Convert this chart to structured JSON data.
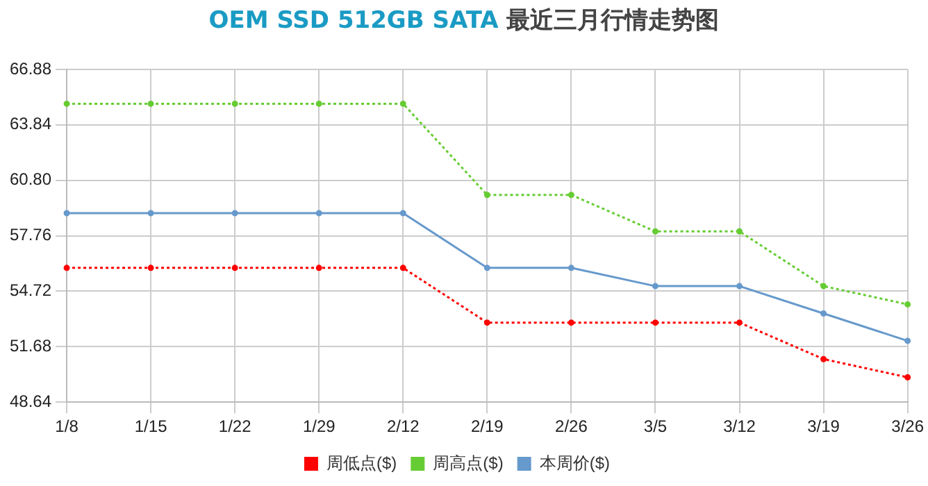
{
  "chart_data": {
    "type": "line",
    "title": "OEM SSD 512GB SATA 最近三月行情走势图",
    "categories": [
      "1/8",
      "1/15",
      "1/22",
      "1/29",
      "2/12",
      "2/19",
      "2/26",
      "3/5",
      "3/12",
      "3/19",
      "3/26"
    ],
    "series": [
      {
        "name": "周低点($)",
        "color": "#ff0000",
        "line_style": "dotted",
        "values": [
          56,
          56,
          56,
          56,
          56,
          53,
          53,
          53,
          53,
          51,
          50
        ]
      },
      {
        "name": "周高点($)",
        "color": "#66cc33",
        "line_style": "dotted",
        "values": [
          65,
          65,
          65,
          65,
          65,
          60,
          60,
          58,
          58,
          55,
          54
        ]
      },
      {
        "name": "本周价($)",
        "color": "#6699cc",
        "line_style": "solid",
        "values": [
          59,
          59,
          59,
          59,
          59,
          56,
          56,
          55,
          55,
          53.5,
          52
        ]
      }
    ],
    "ylim": [
      48.64,
      66.88
    ],
    "yticks": [
      48.64,
      51.68,
      54.72,
      57.76,
      {
        "value": 60.8,
        "label": "60.80"
      },
      63.84,
      66.88
    ],
    "grid": true,
    "legend": "bottom",
    "marker": "circle"
  }
}
